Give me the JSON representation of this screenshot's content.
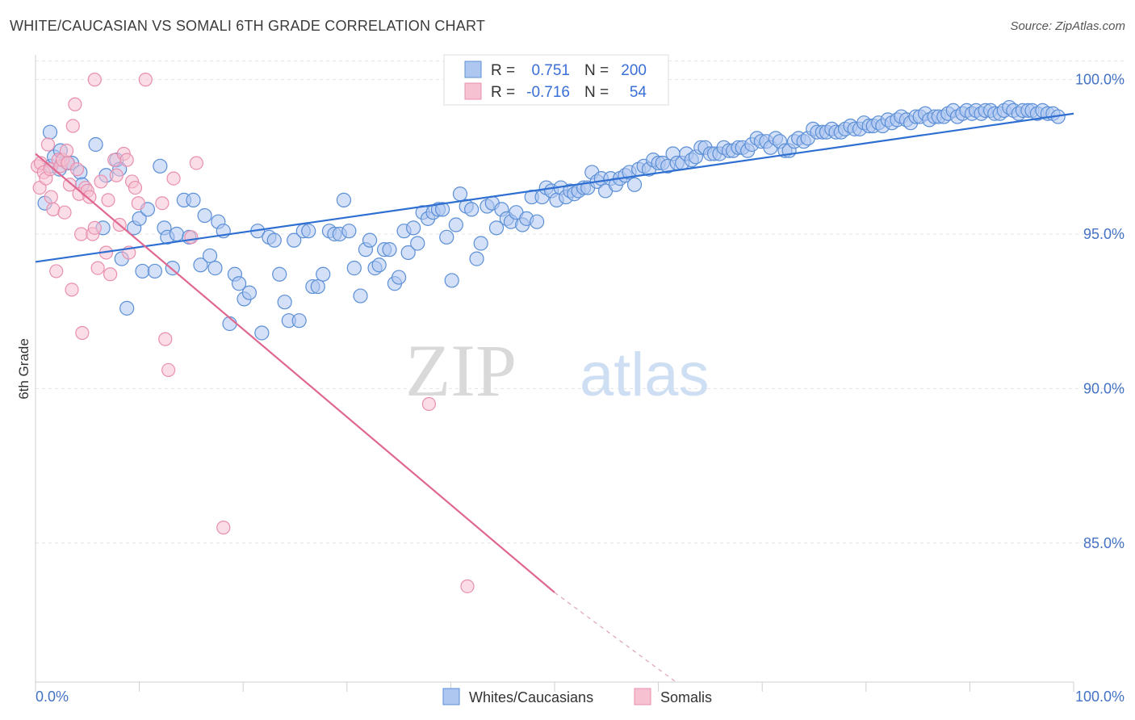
{
  "header": {
    "title": "WHITE/CAUCASIAN VS SOMALI 6TH GRADE CORRELATION CHART",
    "source": "Source: ZipAtlas.com"
  },
  "watermark": {
    "zip": "ZIP",
    "atlas": "atlas"
  },
  "colors": {
    "blue_fill": "#aec7f0",
    "blue_stroke": "#5b8fd6",
    "blue_line": "#2e6fd1",
    "pink_fill": "#f6c1d1",
    "pink_stroke": "#e98fae",
    "pink_line": "#e0678f",
    "tick_color": "#4472c4"
  },
  "legend": {
    "rows": [
      {
        "r_label": "R =",
        "r_value": "0.751",
        "n_label": "N =",
        "n_value": "200"
      },
      {
        "r_label": "R =",
        "r_value": "-0.716",
        "n_label": "N =",
        "n_value": "54"
      }
    ]
  },
  "chart_data": {
    "type": "scatter",
    "title": "WHITE/CAUCASIAN VS SOMALI 6TH GRADE CORRELATION CHART",
    "ylabel": "6th Grade",
    "xlabel": "",
    "xlim": [
      0,
      100
    ],
    "ylim": [
      80.5,
      100.8
    ],
    "x_tick_labels": [
      "0.0%",
      "100.0%"
    ],
    "y_ticks": [
      85,
      90,
      95,
      100
    ],
    "y_tick_labels": [
      "85.0%",
      "90.0%",
      "95.0%",
      "100.0%"
    ],
    "grid": true,
    "legend_position": "top-center",
    "series": [
      {
        "name": "Whites/Caucasians",
        "color": "#aec7f0",
        "trend": {
          "x": [
            0,
            100
          ],
          "y": [
            94.1,
            98.9
          ],
          "style": "solid"
        },
        "points": [
          [
            0.9,
            96
          ],
          [
            1.4,
            98.3
          ],
          [
            1.5,
            97.2
          ],
          [
            1.8,
            97.5
          ],
          [
            2.3,
            97.1
          ],
          [
            2.4,
            97.7
          ],
          [
            3.1,
            97.3
          ],
          [
            3.5,
            97.3
          ],
          [
            4.3,
            97
          ],
          [
            4.5,
            96.6
          ],
          [
            5.8,
            97.9
          ],
          [
            6.5,
            95.2
          ],
          [
            6.8,
            96.9
          ],
          [
            7.8,
            97.4
          ],
          [
            8.1,
            97.1
          ],
          [
            8.3,
            94.2
          ],
          [
            8.8,
            92.6
          ],
          [
            9.5,
            95.2
          ],
          [
            10.0,
            95.5
          ],
          [
            10.3,
            93.8
          ],
          [
            10.8,
            95.8
          ],
          [
            11.5,
            93.8
          ],
          [
            12.0,
            97.2
          ],
          [
            12.4,
            95.2
          ],
          [
            12.7,
            94.9
          ],
          [
            13.2,
            93.9
          ],
          [
            13.6,
            95
          ],
          [
            14.3,
            96.1
          ],
          [
            14.8,
            94.9
          ],
          [
            15.2,
            96.1
          ],
          [
            15.9,
            94
          ],
          [
            16.3,
            95.6
          ],
          [
            16.8,
            94.3
          ],
          [
            17.3,
            93.9
          ],
          [
            17.6,
            95.4
          ],
          [
            18.1,
            95.1
          ],
          [
            18.7,
            92.1
          ],
          [
            19.2,
            93.7
          ],
          [
            19.6,
            93.4
          ],
          [
            20.1,
            92.9
          ],
          [
            20.6,
            93.1
          ],
          [
            21.4,
            95.1
          ],
          [
            21.8,
            91.8
          ],
          [
            22.5,
            94.9
          ],
          [
            23.0,
            94.8
          ],
          [
            23.5,
            93.7
          ],
          [
            24.0,
            92.8
          ],
          [
            24.4,
            92.2
          ],
          [
            24.9,
            94.8
          ],
          [
            25.4,
            92.2
          ],
          [
            25.8,
            95.1
          ],
          [
            26.3,
            95.1
          ],
          [
            26.7,
            93.3
          ],
          [
            27.2,
            93.3
          ],
          [
            27.7,
            93.7
          ],
          [
            28.3,
            95.1
          ],
          [
            28.8,
            95
          ],
          [
            29.3,
            95
          ],
          [
            29.7,
            96.1
          ],
          [
            30.2,
            95.1
          ],
          [
            30.7,
            93.9
          ],
          [
            31.3,
            93
          ],
          [
            31.8,
            94.5
          ],
          [
            32.2,
            94.8
          ],
          [
            32.7,
            93.9
          ],
          [
            33.1,
            94
          ],
          [
            33.6,
            94.5
          ],
          [
            34.1,
            94.5
          ],
          [
            34.6,
            93.4
          ],
          [
            35.0,
            93.6
          ],
          [
            35.5,
            95.1
          ],
          [
            35.9,
            94.4
          ],
          [
            36.4,
            95.2
          ],
          [
            36.8,
            94.7
          ],
          [
            37.3,
            95.7
          ],
          [
            37.8,
            95.5
          ],
          [
            38.3,
            95.7
          ],
          [
            38.8,
            95.8
          ],
          [
            39.2,
            95.8
          ],
          [
            39.6,
            94.9
          ],
          [
            40.1,
            93.5
          ],
          [
            40.5,
            95.3
          ],
          [
            40.9,
            96.3
          ],
          [
            41.5,
            95.9
          ],
          [
            42.0,
            95.8
          ],
          [
            42.5,
            94.2
          ],
          [
            42.9,
            94.7
          ],
          [
            43.5,
            95.9
          ],
          [
            44.0,
            96
          ],
          [
            44.4,
            95.2
          ],
          [
            44.9,
            95.8
          ],
          [
            45.4,
            95.5
          ],
          [
            45.8,
            95.4
          ],
          [
            46.3,
            95.7
          ],
          [
            46.9,
            95.3
          ],
          [
            47.3,
            95.5
          ],
          [
            47.8,
            96.2
          ],
          [
            48.3,
            95.4
          ],
          [
            48.8,
            96.2
          ],
          [
            49.2,
            96.5
          ],
          [
            49.7,
            96.4
          ],
          [
            50.2,
            96.1
          ],
          [
            50.6,
            96.5
          ],
          [
            51.1,
            96.2
          ],
          [
            51.5,
            96.4
          ],
          [
            51.9,
            96.3
          ],
          [
            52.3,
            96.4
          ],
          [
            52.8,
            96.5
          ],
          [
            53.2,
            96.5
          ],
          [
            53.6,
            97
          ],
          [
            54.1,
            96.7
          ],
          [
            54.5,
            96.8
          ],
          [
            54.9,
            96.4
          ],
          [
            55.4,
            96.8
          ],
          [
            55.9,
            96.6
          ],
          [
            56.3,
            96.8
          ],
          [
            56.8,
            96.9
          ],
          [
            57.2,
            97
          ],
          [
            57.7,
            96.6
          ],
          [
            58.1,
            97.1
          ],
          [
            58.6,
            97.2
          ],
          [
            59.1,
            97.1
          ],
          [
            59.5,
            97.4
          ],
          [
            60.0,
            97.3
          ],
          [
            60.4,
            97.3
          ],
          [
            60.9,
            97.2
          ],
          [
            61.4,
            97.6
          ],
          [
            61.8,
            97.3
          ],
          [
            62.3,
            97.3
          ],
          [
            62.7,
            97.6
          ],
          [
            63.2,
            97.4
          ],
          [
            63.6,
            97.5
          ],
          [
            64.1,
            97.8
          ],
          [
            64.5,
            97.8
          ],
          [
            65.0,
            97.6
          ],
          [
            65.4,
            97.6
          ],
          [
            65.9,
            97.6
          ],
          [
            66.3,
            97.8
          ],
          [
            66.8,
            97.7
          ],
          [
            67.2,
            97.7
          ],
          [
            67.7,
            97.8
          ],
          [
            68.1,
            97.8
          ],
          [
            68.6,
            97.7
          ],
          [
            69.0,
            97.9
          ],
          [
            69.5,
            98.1
          ],
          [
            69.9,
            98
          ],
          [
            70.4,
            98
          ],
          [
            70.8,
            97.8
          ],
          [
            71.3,
            98.1
          ],
          [
            71.7,
            98
          ],
          [
            72.2,
            97.7
          ],
          [
            72.6,
            97.7
          ],
          [
            73.1,
            98
          ],
          [
            73.5,
            98.1
          ],
          [
            74.0,
            98
          ],
          [
            74.4,
            98.1
          ],
          [
            74.9,
            98.4
          ],
          [
            75.3,
            98.3
          ],
          [
            75.8,
            98.3
          ],
          [
            76.2,
            98.3
          ],
          [
            76.7,
            98.4
          ],
          [
            77.1,
            98.3
          ],
          [
            77.6,
            98.3
          ],
          [
            78.0,
            98.4
          ],
          [
            78.5,
            98.5
          ],
          [
            78.9,
            98.4
          ],
          [
            79.4,
            98.4
          ],
          [
            79.8,
            98.6
          ],
          [
            80.3,
            98.5
          ],
          [
            80.7,
            98.5
          ],
          [
            81.2,
            98.6
          ],
          [
            81.6,
            98.5
          ],
          [
            82.1,
            98.7
          ],
          [
            82.5,
            98.6
          ],
          [
            83.0,
            98.7
          ],
          [
            83.4,
            98.8
          ],
          [
            83.9,
            98.7
          ],
          [
            84.3,
            98.6
          ],
          [
            84.8,
            98.8
          ],
          [
            85.2,
            98.8
          ],
          [
            85.7,
            98.9
          ],
          [
            86.1,
            98.7
          ],
          [
            86.6,
            98.8
          ],
          [
            87.0,
            98.8
          ],
          [
            87.5,
            98.8
          ],
          [
            87.9,
            98.9
          ],
          [
            88.4,
            99
          ],
          [
            88.8,
            98.8
          ],
          [
            89.3,
            98.9
          ],
          [
            89.7,
            99
          ],
          [
            90.2,
            98.9
          ],
          [
            90.6,
            99
          ],
          [
            91.1,
            98.9
          ],
          [
            91.5,
            99
          ],
          [
            92.0,
            99
          ],
          [
            92.4,
            98.9
          ],
          [
            92.9,
            98.9
          ],
          [
            93.3,
            99
          ],
          [
            93.8,
            99.1
          ],
          [
            94.2,
            99
          ],
          [
            94.7,
            98.9
          ],
          [
            95.1,
            99
          ],
          [
            95.6,
            99
          ],
          [
            96.0,
            99
          ],
          [
            96.5,
            98.9
          ],
          [
            97.0,
            99
          ],
          [
            97.5,
            98.9
          ],
          [
            98.0,
            98.9
          ],
          [
            98.5,
            98.8
          ]
        ]
      },
      {
        "name": "Somalis",
        "color": "#f6c1d1",
        "trend": {
          "x": [
            0,
            50
          ],
          "y": [
            97.6,
            83.4
          ],
          "dashed_to": [
            61.7,
            80.5
          ]
        },
        "points": [
          [
            0.2,
            97.2
          ],
          [
            0.4,
            96.5
          ],
          [
            0.5,
            97.3
          ],
          [
            0.8,
            97
          ],
          [
            1.0,
            96.8
          ],
          [
            1.2,
            97.9
          ],
          [
            1.4,
            97.1
          ],
          [
            1.5,
            96.2
          ],
          [
            1.7,
            95.8
          ],
          [
            2.0,
            93.8
          ],
          [
            2.2,
            97.4
          ],
          [
            2.4,
            97.2
          ],
          [
            2.6,
            97.4
          ],
          [
            2.8,
            95.7
          ],
          [
            3.0,
            97.7
          ],
          [
            3.1,
            97.3
          ],
          [
            3.3,
            96.6
          ],
          [
            3.5,
            93.2
          ],
          [
            3.6,
            98.5
          ],
          [
            3.8,
            99.2
          ],
          [
            4.0,
            97.1
          ],
          [
            4.2,
            96.3
          ],
          [
            4.4,
            95
          ],
          [
            4.5,
            91.8
          ],
          [
            4.8,
            96.5
          ],
          [
            5.0,
            96.4
          ],
          [
            5.2,
            96.2
          ],
          [
            5.5,
            95
          ],
          [
            5.7,
            95.2
          ],
          [
            6.0,
            93.9
          ],
          [
            6.3,
            96.7
          ],
          [
            6.8,
            94.4
          ],
          [
            7.2,
            93.7
          ],
          [
            7.6,
            97.4
          ],
          [
            7.8,
            96.9
          ],
          [
            8.1,
            95.3
          ],
          [
            8.5,
            97.6
          ],
          [
            8.8,
            97.4
          ],
          [
            9.0,
            94.4
          ],
          [
            9.3,
            96.7
          ],
          [
            9.6,
            96.5
          ],
          [
            9.9,
            96
          ],
          [
            5.7,
            100
          ],
          [
            10.6,
            100
          ],
          [
            12.2,
            96
          ],
          [
            12.5,
            91.6
          ],
          [
            12.8,
            90.6
          ],
          [
            13.3,
            96.8
          ],
          [
            15.0,
            94.9
          ],
          [
            15.5,
            97.3
          ],
          [
            18.1,
            85.5
          ],
          [
            37.9,
            89.5
          ],
          [
            41.6,
            83.6
          ],
          [
            7.0,
            96.1
          ]
        ]
      }
    ]
  }
}
